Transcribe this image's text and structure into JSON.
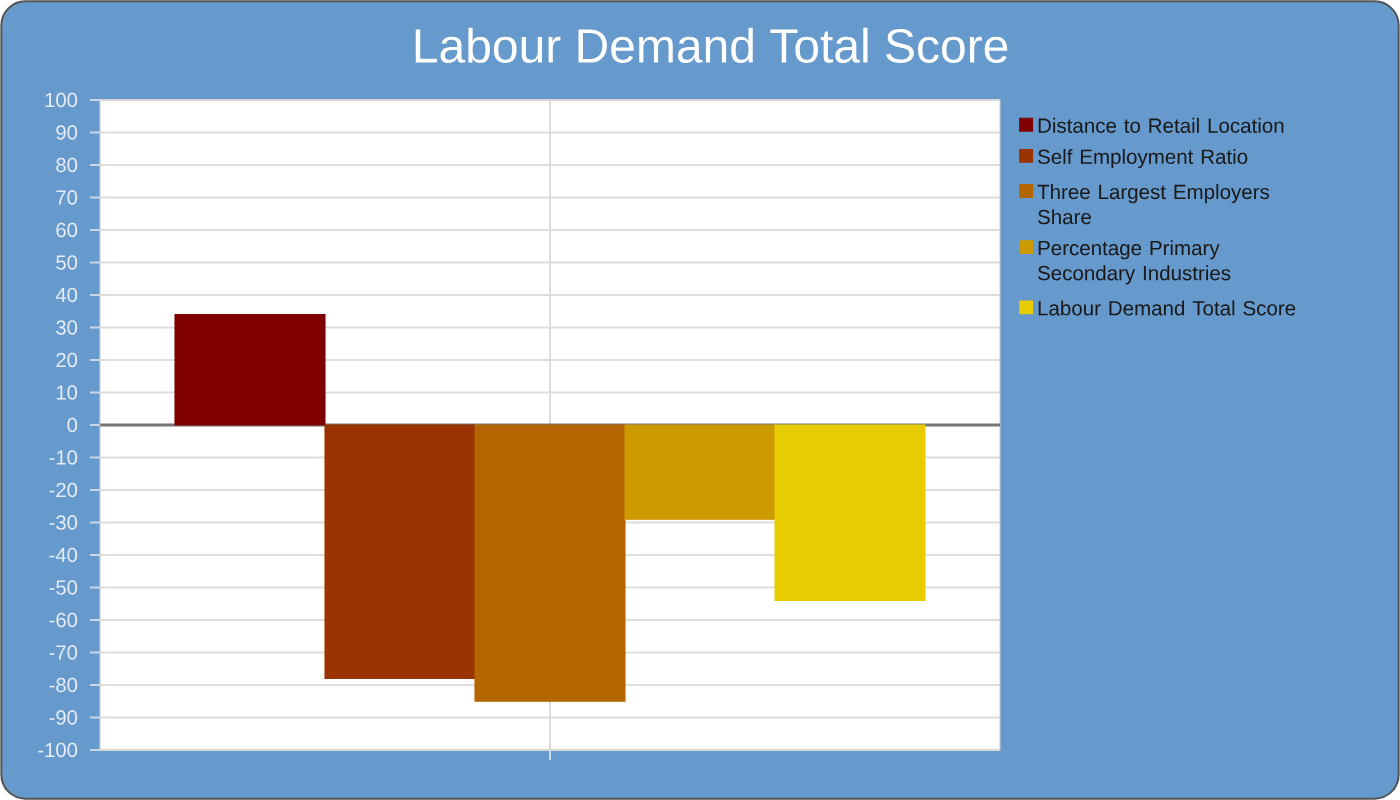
{
  "chart_data": {
    "type": "bar",
    "title": "Labour Demand Total Score",
    "categories": [
      null
    ],
    "series": [
      {
        "name": "Distance to Retail Location",
        "color": "#800000",
        "values": [
          34
        ]
      },
      {
        "name": "Self Employment Ratio",
        "color": "#993300",
        "values": [
          -78
        ]
      },
      {
        "name": "Three Largest Employers Share",
        "color": "#b36600",
        "values": [
          -85
        ]
      },
      {
        "name": "Percentage Primary Secondary Industries",
        "color": "#cc9900",
        "values": [
          -29
        ]
      },
      {
        "name": "Labour Demand Total Score",
        "color": "#e6cc00",
        "values": [
          -54
        ]
      }
    ],
    "ylim": [
      -100,
      100
    ],
    "yticks": [
      -100,
      -90,
      -80,
      -70,
      -60,
      -50,
      -40,
      -30,
      -20,
      -10,
      0,
      10,
      20,
      30,
      40,
      50,
      60,
      70,
      80,
      90,
      100
    ],
    "grid": true,
    "legend": "right"
  }
}
